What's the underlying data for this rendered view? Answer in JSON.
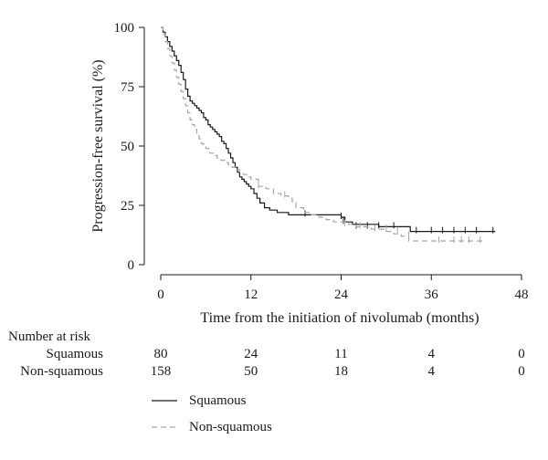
{
  "chart_data": {
    "type": "line",
    "title": "",
    "xlabel": "Time from the initiation of nivolumab (months)",
    "ylabel": "Progression-free survival (%)",
    "xlim": [
      0,
      48
    ],
    "ylim": [
      0,
      100
    ],
    "xticks": [
      "0",
      "12",
      "24",
      "36",
      "48"
    ],
    "yticks": [
      "0",
      "25",
      "50",
      "75",
      "100"
    ],
    "xtick_values": [
      0,
      12,
      24,
      36,
      48
    ],
    "ytick_values": [
      0,
      25,
      50,
      75,
      100
    ],
    "grid": false,
    "legend_position": "bottom-left",
    "series": [
      {
        "name": "Squamous",
        "color": "#1a1a1a",
        "style": "solid",
        "x": [
          0,
          0.3,
          0.6,
          0.9,
          1.2,
          1.5,
          1.8,
          2.1,
          2.4,
          2.7,
          3.0,
          3.3,
          3.6,
          3.9,
          4.2,
          4.5,
          4.8,
          5.1,
          5.4,
          5.7,
          6.0,
          6.3,
          6.6,
          6.9,
          7.2,
          7.5,
          7.8,
          8.1,
          8.4,
          8.7,
          9.0,
          9.3,
          9.6,
          9.9,
          10.2,
          10.5,
          10.8,
          11.1,
          11.4,
          11.7,
          12.0,
          12.4,
          12.8,
          13.2,
          13.8,
          14.5,
          15.5,
          17.0,
          19.0,
          21.0,
          23.0,
          24.0,
          24.5,
          25.5,
          27.0,
          29.0,
          31.0,
          33.0,
          33.2,
          35.0,
          37.0,
          39.0,
          41.0,
          43.0,
          44.5
        ],
        "y": [
          100,
          98,
          96,
          94,
          92,
          90,
          88,
          86,
          84,
          81,
          78,
          74,
          71,
          69,
          68,
          67,
          66,
          65,
          64,
          62,
          61,
          59,
          58,
          57,
          56,
          55,
          54,
          52,
          51,
          49,
          47,
          45,
          43,
          41,
          39,
          37,
          36,
          35,
          34,
          33,
          32,
          30,
          28,
          26,
          24,
          23,
          22,
          21,
          21,
          21,
          21,
          20,
          18,
          17,
          17,
          16,
          16,
          16,
          14,
          14,
          14,
          14,
          14,
          14,
          14
        ],
        "censor_x": [
          19.2,
          24.0,
          24.3,
          26.0,
          27.5,
          29.0,
          31.0,
          34.0,
          36.0,
          37.5,
          39.0,
          40.5,
          42.0,
          44.2
        ],
        "censor_y": [
          21,
          20,
          18,
          16,
          16,
          16,
          16,
          14,
          14,
          14,
          14,
          14,
          14,
          14
        ]
      },
      {
        "name": "Non-squamous",
        "color": "#a6a6a6",
        "style": "dashed",
        "x": [
          0,
          0.3,
          0.6,
          0.9,
          1.2,
          1.5,
          1.8,
          2.1,
          2.4,
          2.7,
          3.0,
          3.3,
          3.6,
          3.9,
          4.2,
          4.5,
          4.8,
          5.1,
          5.4,
          5.7,
          6.0,
          6.5,
          7.0,
          7.5,
          8.0,
          8.5,
          9.0,
          9.5,
          10.0,
          10.5,
          11.0,
          11.5,
          12.0,
          13.0,
          14.0,
          15.0,
          16.0,
          16.5,
          17.0,
          17.5,
          18.0,
          19.0,
          20.0,
          21.0,
          22.0,
          23.0,
          24.0,
          25.0,
          26.0,
          27.0,
          28.0,
          29.0,
          30.0,
          31.0,
          32.0,
          33.0,
          34.0,
          36.0,
          38.0,
          40.0,
          42.0,
          43.0
        ],
        "y": [
          100,
          97,
          94,
          91,
          88,
          85,
          82,
          79,
          76,
          73,
          70,
          67,
          64,
          61,
          59,
          57,
          55,
          53,
          51,
          50,
          49,
          47,
          46,
          45,
          44,
          43,
          42,
          41,
          40,
          39,
          38,
          37,
          36,
          33,
          32,
          30,
          29,
          29,
          28,
          26,
          24,
          22,
          21,
          20,
          19,
          18,
          18,
          17,
          16,
          16,
          15,
          15,
          14,
          13,
          12,
          10,
          10,
          10,
          10,
          10,
          10,
          10
        ],
        "censor_x": [
          13.0,
          16.5,
          24.5,
          26.5,
          28.5,
          30.0,
          31.5,
          33.0,
          37.0,
          39.0,
          40.0,
          41.0,
          42.5
        ],
        "censor_y": [
          33,
          29,
          17,
          16,
          15,
          15,
          14,
          12,
          10,
          10,
          10,
          10,
          10
        ]
      }
    ],
    "risk_table": {
      "title": "Number at risk",
      "rows": [
        {
          "label": "Squamous",
          "values": [
            "80",
            "24",
            "11",
            "4",
            "0"
          ]
        },
        {
          "label": "Non-squamous",
          "values": [
            "158",
            "50",
            "18",
            "4",
            "0"
          ]
        }
      ]
    }
  }
}
